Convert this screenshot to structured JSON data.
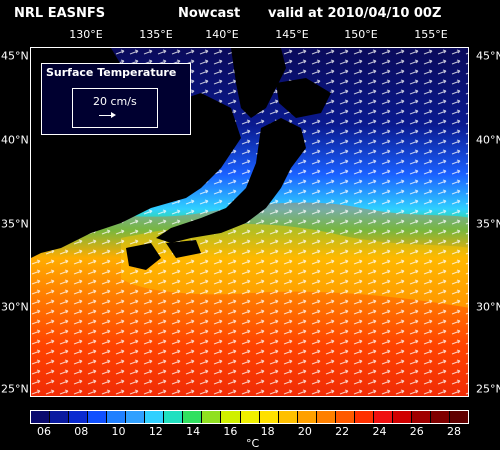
{
  "header": {
    "model": "NRL EASNFS",
    "type": "Nowcast",
    "valid": "valid at 2010/04/10 00Z"
  },
  "longitudes": [
    "130°E",
    "135°E",
    "140°E",
    "145°E",
    "150°E",
    "155°E"
  ],
  "latitudes": [
    "45°N",
    "40°N",
    "35°N",
    "30°N",
    "25°N"
  ],
  "legend": {
    "title": "Surface Temperature",
    "scale_label": "20 cm/s"
  },
  "colorbar": {
    "ticks": [
      "06",
      "08",
      "10",
      "12",
      "14",
      "16",
      "18",
      "20",
      "22",
      "24",
      "26",
      "28"
    ],
    "unit": "°C",
    "colors": [
      "#0a0a6e",
      "#0a1aa0",
      "#0a2ad0",
      "#1050ff",
      "#2080ff",
      "#30a0ff",
      "#30d0ff",
      "#20e0c0",
      "#30e060",
      "#90e020",
      "#d0f000",
      "#f0f000",
      "#ffe000",
      "#ffc000",
      "#ffa000",
      "#ff8000",
      "#ff5a00",
      "#ff3000",
      "#f01010",
      "#d00000",
      "#a00000",
      "#800000",
      "#600000"
    ]
  },
  "colors": {
    "cold": "#0a0a5a",
    "cool": "#1a60ff",
    "mid": "#30e060",
    "warm": "#ffd000",
    "hot": "#ff3a00",
    "land": "#000000"
  }
}
